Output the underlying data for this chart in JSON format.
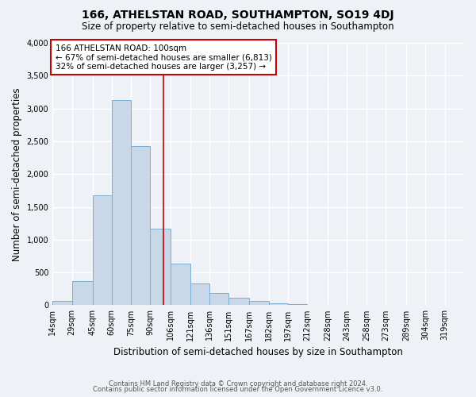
{
  "title": "166, ATHELSTAN ROAD, SOUTHAMPTON, SO19 4DJ",
  "subtitle": "Size of property relative to semi-detached houses in Southampton",
  "xlabel": "Distribution of semi-detached houses by size in Southampton",
  "ylabel": "Number of semi-detached properties",
  "bar_labels": [
    "14sqm",
    "29sqm",
    "45sqm",
    "60sqm",
    "75sqm",
    "90sqm",
    "106sqm",
    "121sqm",
    "136sqm",
    "151sqm",
    "167sqm",
    "182sqm",
    "197sqm",
    "212sqm",
    "228sqm",
    "243sqm",
    "258sqm",
    "273sqm",
    "289sqm",
    "304sqm",
    "319sqm"
  ],
  "bar_values": [
    70,
    370,
    1680,
    3130,
    2430,
    1170,
    630,
    330,
    185,
    110,
    60,
    35,
    15,
    5,
    5,
    5,
    5,
    5,
    5,
    5,
    5
  ],
  "bar_edges": [
    14,
    29,
    45,
    60,
    75,
    90,
    106,
    121,
    136,
    151,
    167,
    182,
    197,
    212,
    228,
    243,
    258,
    273,
    289,
    304,
    319,
    334
  ],
  "bar_color": "#c8d8e8",
  "bar_edgecolor": "#7bafd4",
  "property_line_x": 100,
  "property_line_color": "#cc0000",
  "ylim": [
    0,
    4000
  ],
  "yticks": [
    0,
    500,
    1000,
    1500,
    2000,
    2500,
    3000,
    3500,
    4000
  ],
  "annotation_box_text": "166 ATHELSTAN ROAD: 100sqm\n← 67% of semi-detached houses are smaller (6,813)\n32% of semi-detached houses are larger (3,257) →",
  "annotation_box_color": "#cc0000",
  "footer_line1": "Contains HM Land Registry data © Crown copyright and database right 2024.",
  "footer_line2": "Contains public sector information licensed under the Open Government Licence v3.0.",
  "background_color": "#eef2f7",
  "grid_color": "#ffffff",
  "title_fontsize": 10,
  "subtitle_fontsize": 8.5,
  "axis_label_fontsize": 8.5,
  "tick_fontsize": 7,
  "annotation_fontsize": 7.5,
  "footer_fontsize": 6
}
